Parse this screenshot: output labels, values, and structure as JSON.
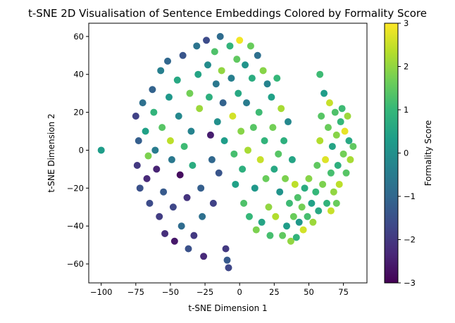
{
  "chart_data": {
    "type": "scatter",
    "title": "t-SNE 2D Visualisation of Sentence Embeddings Colored by Formality Score",
    "xlabel": "t-SNE Dimension 1",
    "ylabel": "t-SNE Dimension 2",
    "xlim": [
      -109,
      92
    ],
    "ylim": [
      -70,
      67
    ],
    "x_ticks": [
      -100,
      -75,
      -50,
      -25,
      0,
      25,
      50,
      75
    ],
    "x_tick_labels": [
      "−100",
      "−75",
      "−50",
      "−25",
      "0",
      "25",
      "50",
      "75"
    ],
    "y_ticks": [
      -60,
      -40,
      -20,
      0,
      20,
      40,
      60
    ],
    "y_tick_labels": [
      "−60",
      "−40",
      "−20",
      "0",
      "20",
      "40",
      "60"
    ],
    "grid": false,
    "legend": "none",
    "colorbar": {
      "label": "Formality Score",
      "range": [
        -3,
        3
      ],
      "ticks": [
        -3,
        -2,
        -1,
        0,
        1,
        2,
        3
      ],
      "tick_labels": [
        "−3",
        "−2",
        "−1",
        "0",
        "1",
        "2",
        "3"
      ],
      "colormap": "viridis",
      "colors": [
        "#440154",
        "#482878",
        "#3e4989",
        "#31688e",
        "#26828e",
        "#1f9e89",
        "#35b779",
        "#6ece58",
        "#b5de2b",
        "#fde725"
      ]
    },
    "points": [
      {
        "x": -100,
        "y": 0,
        "c": 0.3
      },
      {
        "x": -75,
        "y": 18,
        "c": -1.8
      },
      {
        "x": -73,
        "y": 5,
        "c": -1.2
      },
      {
        "x": -74,
        "y": -8,
        "c": -2.0
      },
      {
        "x": -72,
        "y": -20,
        "c": -1.5
      },
      {
        "x": -70,
        "y": 25,
        "c": -0.8
      },
      {
        "x": -68,
        "y": 10,
        "c": 0.4
      },
      {
        "x": -66,
        "y": -3,
        "c": 1.8
      },
      {
        "x": -67,
        "y": -15,
        "c": -2.3
      },
      {
        "x": -65,
        "y": -28,
        "c": -1.6
      },
      {
        "x": -63,
        "y": 32,
        "c": -1.1
      },
      {
        "x": -62,
        "y": 20,
        "c": 0.9
      },
      {
        "x": -61,
        "y": 0,
        "c": -0.5
      },
      {
        "x": -60,
        "y": -10,
        "c": -2.4
      },
      {
        "x": -58,
        "y": -35,
        "c": -1.9
      },
      {
        "x": -57,
        "y": 42,
        "c": -0.4
      },
      {
        "x": -56,
        "y": 12,
        "c": 1.4
      },
      {
        "x": -55,
        "y": -22,
        "c": -1.3
      },
      {
        "x": -54,
        "y": -44,
        "c": -2.2
      },
      {
        "x": -52,
        "y": 47,
        "c": -1.0
      },
      {
        "x": -51,
        "y": 28,
        "c": 0.2
      },
      {
        "x": -50,
        "y": 5,
        "c": 2.4
      },
      {
        "x": -49,
        "y": -5,
        "c": -0.6
      },
      {
        "x": -48,
        "y": -30,
        "c": -1.7
      },
      {
        "x": -47,
        "y": -48,
        "c": -2.6
      },
      {
        "x": -45,
        "y": 37,
        "c": 0.6
      },
      {
        "x": -44,
        "y": 18,
        "c": -0.2
      },
      {
        "x": -43,
        "y": -13,
        "c": -2.8
      },
      {
        "x": -42,
        "y": -40,
        "c": -0.9
      },
      {
        "x": -41,
        "y": 50,
        "c": -1.4
      },
      {
        "x": -40,
        "y": 2,
        "c": 1.1
      },
      {
        "x": -38,
        "y": -25,
        "c": -2.1
      },
      {
        "x": -37,
        "y": -52,
        "c": -1.5
      },
      {
        "x": -36,
        "y": 30,
        "c": 1.7
      },
      {
        "x": -35,
        "y": 10,
        "c": -0.3
      },
      {
        "x": -34,
        "y": -8,
        "c": 0.7
      },
      {
        "x": -33,
        "y": -45,
        "c": -2.0
      },
      {
        "x": -31,
        "y": 55,
        "c": -0.7
      },
      {
        "x": -30,
        "y": 40,
        "c": 0.5
      },
      {
        "x": -29,
        "y": 22,
        "c": 2.1
      },
      {
        "x": -28,
        "y": -20,
        "c": -1.2
      },
      {
        "x": -27,
        "y": -35,
        "c": -0.8
      },
      {
        "x": -26,
        "y": -56,
        "c": -2.3
      },
      {
        "x": -24,
        "y": 58,
        "c": -1.6
      },
      {
        "x": -23,
        "y": 45,
        "c": -0.1
      },
      {
        "x": -22,
        "y": 28,
        "c": 0.8
      },
      {
        "x": -21,
        "y": 8,
        "c": -2.5
      },
      {
        "x": -20,
        "y": -5,
        "c": -1.0
      },
      {
        "x": -19,
        "y": -28,
        "c": -1.8
      },
      {
        "x": -18,
        "y": 52,
        "c": 1.3
      },
      {
        "x": -17,
        "y": 35,
        "c": -0.6
      },
      {
        "x": -16,
        "y": 15,
        "c": 0.0
      },
      {
        "x": -15,
        "y": -12,
        "c": -1.4
      },
      {
        "x": -14,
        "y": 60,
        "c": -0.9
      },
      {
        "x": -13,
        "y": 42,
        "c": 2.0
      },
      {
        "x": -12,
        "y": 25,
        "c": -1.1
      },
      {
        "x": -11,
        "y": 5,
        "c": 0.3
      },
      {
        "x": -10,
        "y": -52,
        "c": -2.0
      },
      {
        "x": -9,
        "y": -58,
        "c": -1.3
      },
      {
        "x": -8,
        "y": -62,
        "c": -1.7
      },
      {
        "x": -7,
        "y": 55,
        "c": 0.9
      },
      {
        "x": -6,
        "y": 38,
        "c": -0.4
      },
      {
        "x": -5,
        "y": 18,
        "c": 2.6
      },
      {
        "x": -4,
        "y": -2,
        "c": 1.2
      },
      {
        "x": -3,
        "y": -18,
        "c": 0.4
      },
      {
        "x": -2,
        "y": 48,
        "c": 1.5
      },
      {
        "x": -1,
        "y": 30,
        "c": 0.6
      },
      {
        "x": 0,
        "y": 58,
        "c": 2.9
      },
      {
        "x": 1,
        "y": 10,
        "c": 1.9
      },
      {
        "x": 2,
        "y": -10,
        "c": 0.8
      },
      {
        "x": 3,
        "y": -28,
        "c": 1.3
      },
      {
        "x": 4,
        "y": 45,
        "c": 0.1
      },
      {
        "x": 5,
        "y": 25,
        "c": -0.5
      },
      {
        "x": 6,
        "y": 0,
        "c": 2.2
      },
      {
        "x": 7,
        "y": -35,
        "c": 1.0
      },
      {
        "x": 8,
        "y": 55,
        "c": 1.6
      },
      {
        "x": 9,
        "y": 38,
        "c": 0.7
      },
      {
        "x": 10,
        "y": 12,
        "c": 1.4
      },
      {
        "x": 11,
        "y": -20,
        "c": 0.2
      },
      {
        "x": 12,
        "y": -42,
        "c": 1.8
      },
      {
        "x": 13,
        "y": 50,
        "c": -0.8
      },
      {
        "x": 14,
        "y": 20,
        "c": 1.1
      },
      {
        "x": 15,
        "y": -5,
        "c": 2.5
      },
      {
        "x": 16,
        "y": -38,
        "c": 0.5
      },
      {
        "x": 17,
        "y": 42,
        "c": 1.9
      },
      {
        "x": 18,
        "y": 5,
        "c": 0.9
      },
      {
        "x": 19,
        "y": -15,
        "c": 1.6
      },
      {
        "x": 20,
        "y": 35,
        "c": -0.3
      },
      {
        "x": 21,
        "y": -30,
        "c": 2.0
      },
      {
        "x": 22,
        "y": -45,
        "c": 1.2
      },
      {
        "x": 23,
        "y": 28,
        "c": 0.4
      },
      {
        "x": 24,
        "y": 12,
        "c": 1.7
      },
      {
        "x": 25,
        "y": -10,
        "c": 0.6
      },
      {
        "x": 26,
        "y": -35,
        "c": 2.3
      },
      {
        "x": 27,
        "y": 38,
        "c": 1.0
      },
      {
        "x": 28,
        "y": -2,
        "c": 1.4
      },
      {
        "x": 29,
        "y": -22,
        "c": 0.1
      },
      {
        "x": 30,
        "y": 22,
        "c": 2.2
      },
      {
        "x": 31,
        "y": -45,
        "c": 1.5
      },
      {
        "x": 32,
        "y": 5,
        "c": 0.8
      },
      {
        "x": 33,
        "y": -15,
        "c": 1.8
      },
      {
        "x": 34,
        "y": -40,
        "c": 0.3
      },
      {
        "x": 35,
        "y": 15,
        "c": -0.2
      },
      {
        "x": 36,
        "y": -28,
        "c": 1.1
      },
      {
        "x": 37,
        "y": -48,
        "c": 2.0
      },
      {
        "x": 38,
        "y": -5,
        "c": 0.5
      },
      {
        "x": 39,
        "y": -35,
        "c": 1.6
      },
      {
        "x": 40,
        "y": -18,
        "c": 2.4
      },
      {
        "x": 41,
        "y": -46,
        "c": 0.9
      },
      {
        "x": 42,
        "y": -25,
        "c": 1.3
      },
      {
        "x": 43,
        "y": -38,
        "c": 0.2
      },
      {
        "x": 45,
        "y": -30,
        "c": 1.7
      },
      {
        "x": 46,
        "y": -42,
        "c": 2.6
      },
      {
        "x": 47,
        "y": -20,
        "c": 0.7
      },
      {
        "x": 49,
        "y": -35,
        "c": 1.2
      },
      {
        "x": 50,
        "y": -15,
        "c": 1.9
      },
      {
        "x": 52,
        "y": -28,
        "c": 0.4
      },
      {
        "x": 53,
        "y": -38,
        "c": 2.1
      },
      {
        "x": 55,
        "y": -22,
        "c": 1.0
      },
      {
        "x": 56,
        "y": -8,
        "c": 1.5
      },
      {
        "x": 57,
        "y": -32,
        "c": 0.6
      },
      {
        "x": 58,
        "y": 5,
        "c": 2.3
      },
      {
        "x": 59,
        "y": 18,
        "c": 1.4
      },
      {
        "x": 58,
        "y": 40,
        "c": 1.1
      },
      {
        "x": 60,
        "y": -18,
        "c": 1.8
      },
      {
        "x": 61,
        "y": 30,
        "c": 0.3
      },
      {
        "x": 62,
        "y": -5,
        "c": 2.7
      },
      {
        "x": 63,
        "y": -28,
        "c": 0.9
      },
      {
        "x": 64,
        "y": 12,
        "c": 1.6
      },
      {
        "x": 65,
        "y": 25,
        "c": 2.5
      },
      {
        "x": 66,
        "y": -12,
        "c": 1.2
      },
      {
        "x": 67,
        "y": 2,
        "c": 0.5
      },
      {
        "x": 68,
        "y": -22,
        "c": 2.0
      },
      {
        "x": 69,
        "y": 20,
        "c": 1.3
      },
      {
        "x": 70,
        "y": 8,
        "c": 1.9
      },
      {
        "x": 71,
        "y": -8,
        "c": 0.8
      },
      {
        "x": 72,
        "y": -18,
        "c": 2.4
      },
      {
        "x": 73,
        "y": 15,
        "c": 1.0
      },
      {
        "x": 75,
        "y": -2,
        "c": 1.7
      },
      {
        "x": 76,
        "y": 10,
        "c": 2.8
      },
      {
        "x": 77,
        "y": -12,
        "c": 1.4
      },
      {
        "x": 79,
        "y": 5,
        "c": 0.6
      },
      {
        "x": 80,
        "y": -5,
        "c": 2.2
      },
      {
        "x": 82,
        "y": 2,
        "c": 1.5
      },
      {
        "x": 78,
        "y": 18,
        "c": 2.1
      },
      {
        "x": 74,
        "y": 22,
        "c": 1.1
      },
      {
        "x": 70,
        "y": -28,
        "c": 1.6
      },
      {
        "x": 66,
        "y": -32,
        "c": 2.5
      }
    ]
  }
}
